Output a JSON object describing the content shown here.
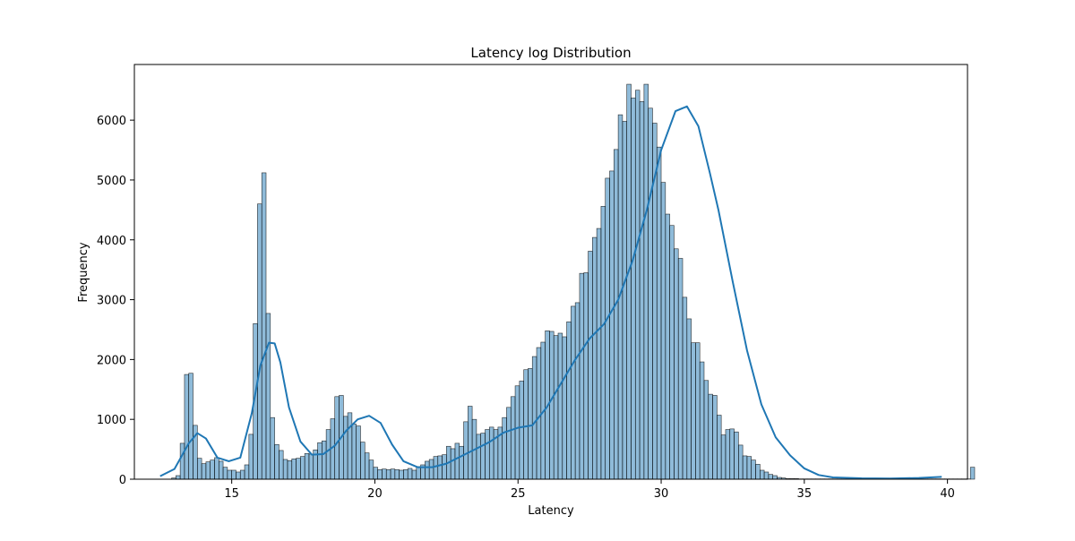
{
  "chart_data": {
    "type": "histogram",
    "title": "Latency log Distribution",
    "xlabel": "Latency",
    "ylabel": "Frequency",
    "xlim": [
      11.6,
      40.7
    ],
    "ylim": [
      0,
      6930
    ],
    "x_ticks": [
      15,
      20,
      25,
      30,
      35,
      40
    ],
    "y_ticks": [
      0,
      1000,
      2000,
      3000,
      4000,
      5000,
      6000
    ],
    "bin_start": 12.9,
    "bin_width": 0.15,
    "bar_color": "#1f77b4",
    "bar_opacity": 0.5,
    "line_color": "#1f77b4",
    "grid": false,
    "counts": [
      20,
      60,
      600,
      1750,
      1770,
      900,
      350,
      260,
      290,
      320,
      360,
      300,
      200,
      150,
      150,
      120,
      150,
      240,
      750,
      2600,
      4600,
      5120,
      2770,
      1030,
      580,
      480,
      330,
      310,
      340,
      350,
      380,
      430,
      420,
      490,
      610,
      640,
      830,
      1010,
      1380,
      1400,
      1050,
      1110,
      920,
      890,
      620,
      440,
      320,
      200,
      160,
      170,
      160,
      170,
      160,
      150,
      160,
      180,
      150,
      210,
      240,
      300,
      330,
      380,
      390,
      410,
      550,
      510,
      600,
      550,
      960,
      1220,
      1000,
      750,
      770,
      830,
      870,
      830,
      870,
      1030,
      1200,
      1380,
      1560,
      1640,
      1830,
      1850,
      2050,
      2200,
      2290,
      2480,
      2470,
      2400,
      2440,
      2380,
      2630,
      2890,
      2950,
      3440,
      3450,
      3810,
      4040,
      4190,
      4560,
      5030,
      5150,
      5510,
      6090,
      5980,
      6600,
      6370,
      6500,
      6310,
      6600,
      6200,
      5950,
      5550,
      4960,
      4430,
      4240,
      3850,
      3690,
      3040,
      2680,
      2280,
      2280,
      1960,
      1650,
      1420,
      1400,
      1070,
      740,
      830,
      840,
      790,
      570,
      390,
      380,
      320,
      250,
      150,
      120,
      80,
      60,
      30,
      20,
      10,
      10,
      10,
      5,
      5,
      5,
      5,
      5,
      5,
      5,
      5,
      5,
      5,
      5,
      5,
      5,
      5,
      5,
      5,
      5,
      5,
      5,
      5,
      5,
      5,
      5,
      5,
      5,
      5,
      5,
      5,
      5,
      5,
      5,
      5,
      5,
      5,
      5,
      5,
      5,
      5,
      5,
      5,
      200
    ],
    "kde_x": [
      12.5,
      13.0,
      13.5,
      13.8,
      14.1,
      14.5,
      14.9,
      15.3,
      15.7,
      16.0,
      16.3,
      16.5,
      16.7,
      17.0,
      17.4,
      17.8,
      18.2,
      18.6,
      19.0,
      19.4,
      19.8,
      20.2,
      20.6,
      21.0,
      21.5,
      22.0,
      22.5,
      23.0,
      23.5,
      24.0,
      24.5,
      25.0,
      25.5,
      26.0,
      26.5,
      27.0,
      27.5,
      28.0,
      28.5,
      29.0,
      29.5,
      30.0,
      30.5,
      30.9,
      31.3,
      31.7,
      32.0,
      32.5,
      33.0,
      33.5,
      34.0,
      34.5,
      35.0,
      35.5,
      36.0,
      37.0,
      38.0,
      39.0,
      39.8
    ],
    "kde_y": [
      50,
      170,
      600,
      770,
      680,
      360,
      300,
      360,
      1100,
      1900,
      2280,
      2270,
      1950,
      1200,
      630,
      410,
      420,
      560,
      810,
      1000,
      1060,
      940,
      580,
      300,
      200,
      200,
      260,
      380,
      500,
      620,
      780,
      860,
      900,
      1200,
      1600,
      2000,
      2350,
      2590,
      3000,
      3650,
      4500,
      5500,
      6150,
      6230,
      5900,
      5120,
      4500,
      3300,
      2150,
      1250,
      700,
      400,
      180,
      70,
      30,
      15,
      12,
      20,
      40
    ]
  }
}
